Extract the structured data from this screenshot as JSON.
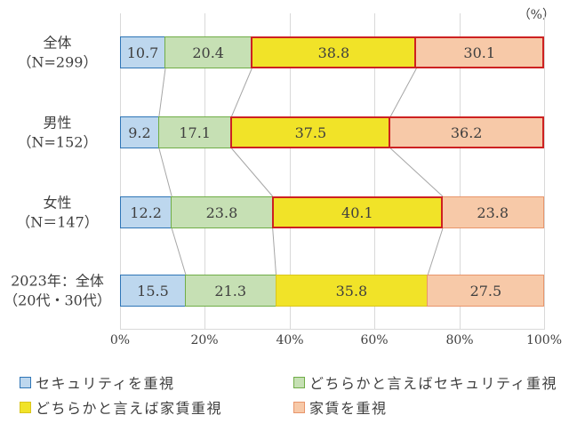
{
  "chart_data": {
    "type": "bar",
    "orientation": "horizontal",
    "stacked": true,
    "percent_total": true,
    "unit_label": "（%）",
    "title": "",
    "xlabel": "",
    "ylabel": "",
    "xlim": [
      0,
      100
    ],
    "grid": true,
    "x_ticks": [
      "0%",
      "20%",
      "40%",
      "60%",
      "80%",
      "100%"
    ],
    "x_tick_values": [
      0,
      20,
      40,
      60,
      80,
      100
    ],
    "categories": [
      {
        "line1": "全体",
        "line2": "（N=299）"
      },
      {
        "line1": "男性",
        "line2": "（N=152）"
      },
      {
        "line1": "女性",
        "line2": "（N＝147）"
      },
      {
        "line1": "2023年：全体",
        "line2": "（20代・30代）"
      }
    ],
    "series": [
      {
        "name": "セキュリティを重視",
        "fill": "#bdd7ee",
        "border": "#2e75b6",
        "values": [
          10.7,
          9.2,
          12.2,
          15.5
        ]
      },
      {
        "name": "どちらかと言えばセキュリティ重視",
        "fill": "#c6e0b4",
        "border": "#70ad47",
        "values": [
          20.4,
          17.1,
          23.8,
          21.3
        ]
      },
      {
        "name": "どちらかと言えば家賃重視",
        "fill": "#f1e328",
        "border": "#d9c51c",
        "values": [
          38.8,
          37.5,
          40.1,
          35.8
        ]
      },
      {
        "name": "家賃を重視",
        "fill": "#f7c9a8",
        "border": "#e8956b",
        "values": [
          30.1,
          36.2,
          23.8,
          27.5
        ]
      }
    ],
    "highlights": [
      [
        0,
        2
      ],
      [
        0,
        3
      ],
      [
        1,
        2
      ],
      [
        1,
        3
      ],
      [
        2,
        2
      ]
    ],
    "highlight_color": "#cd2121",
    "connector_color": "#a6a6a6",
    "gridline_color": "#d9d9d9",
    "legend_position": "bottom",
    "legend_order": [
      "セキュリティを重視",
      "どちらかと言えばセキュリティ重視",
      "どちらかと言えば家賃重視",
      "家賃を重視"
    ]
  }
}
